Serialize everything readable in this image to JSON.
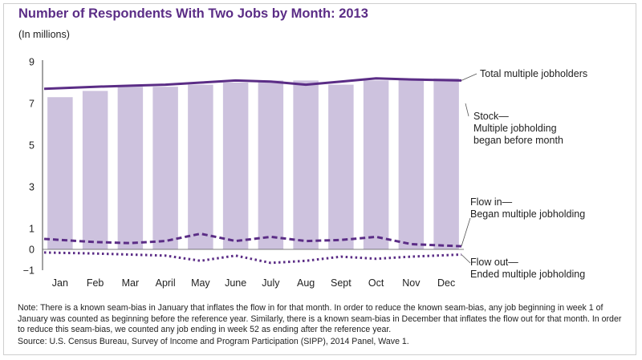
{
  "title": "Number of Respondents With Two Jobs by Month: 2013",
  "subtitle": "(In millions)",
  "note": "Note: There is a known seam-bias in January that inflates the flow in for that month. In order to reduce the known seam-bias, any job beginning in week 1 of January was counted as beginning before the reference year. Similarly, there is a known seam-bias in December that inflates the flow out for that month. In order to reduce this seam-bias, we counted any job ending in week 52 as ending after the reference year.",
  "source": "Source: U.S. Census Bureau, Survey of Income and Program Participation (SIPP), 2014 Panel, Wave 1.",
  "colors": {
    "title": "#5b2d86",
    "bar": "#cdc2de",
    "line": "#5b2d86",
    "axis": "#444444"
  },
  "chart_data": {
    "type": "bar",
    "categories": [
      "Jan",
      "Feb",
      "Mar",
      "April",
      "May",
      "June",
      "July",
      "Aug",
      "Sept",
      "Oct",
      "Nov",
      "Dec"
    ],
    "yticks": [
      "9",
      "7",
      "5",
      "3",
      "1",
      "0",
      "−1"
    ],
    "ylim": [
      -1,
      9
    ],
    "grid": false,
    "series": [
      {
        "name": "Stock— Multiple jobholding began before month",
        "type": "bar",
        "values": [
          7.3,
          7.6,
          7.8,
          7.8,
          7.9,
          8.0,
          8.1,
          8.1,
          7.9,
          8.1,
          8.2,
          8.2
        ]
      },
      {
        "name": "Total multiple jobholders",
        "type": "line",
        "style": "solid",
        "values": [
          7.7,
          7.8,
          7.85,
          7.9,
          8.0,
          8.1,
          8.05,
          7.9,
          8.05,
          8.2,
          8.15,
          8.1
        ]
      },
      {
        "name": "Flow in— Began multiple jobholding",
        "type": "line",
        "style": "dashed",
        "values": [
          0.5,
          0.35,
          0.3,
          0.4,
          0.75,
          0.4,
          0.6,
          0.4,
          0.45,
          0.6,
          0.25,
          0.15
        ]
      },
      {
        "name": "Flow out— Ended multiple jobholding",
        "type": "line",
        "style": "dotted",
        "values": [
          -0.15,
          -0.2,
          -0.25,
          -0.3,
          -0.55,
          -0.3,
          -0.65,
          -0.55,
          -0.35,
          -0.45,
          -0.35,
          -0.25
        ]
      }
    ],
    "annotations": [
      {
        "series": 1,
        "lines": [
          "Total multiple jobholders"
        ]
      },
      {
        "series": 0,
        "lines": [
          "Stock—",
          "Multiple jobholding",
          "began before month"
        ]
      },
      {
        "series": 2,
        "lines": [
          "Flow in—",
          "Began multiple jobholding"
        ]
      },
      {
        "series": 3,
        "lines": [
          "Flow out—",
          "Ended multiple jobholding"
        ]
      }
    ]
  }
}
